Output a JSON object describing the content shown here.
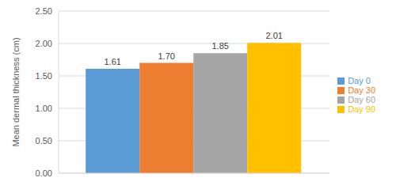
{
  "chart_data": {
    "type": "bar",
    "y_label": "Mean dermal thickness (cm)",
    "categories": [
      null
    ],
    "series": [
      {
        "name": "Day 0",
        "color": "#5B9BD5",
        "values": [
          1.61
        ],
        "value_labels": [
          "1.61"
        ]
      },
      {
        "name": "Day 30",
        "color": "#ED7D31",
        "values": [
          1.7
        ],
        "value_labels": [
          "1.70"
        ]
      },
      {
        "name": "Day 60",
        "color": "#A5A5A5",
        "values": [
          1.85
        ],
        "value_labels": [
          "1.85"
        ]
      },
      {
        "name": "Day 90",
        "color": "#FFC000",
        "values": [
          2.01
        ],
        "value_labels": [
          "2.01"
        ]
      }
    ],
    "ylim": [
      0,
      2.5
    ],
    "yticks": [
      {
        "value": 0,
        "label": "0.00"
      },
      {
        "value": 0.5,
        "label": "0.50"
      },
      {
        "value": 1,
        "label": "1.00"
      },
      {
        "value": 1.5,
        "label": "1.50"
      },
      {
        "value": 2,
        "label": "2.00"
      },
      {
        "value": 2.5,
        "label": "2.50"
      }
    ],
    "grid": true,
    "legend": "right",
    "data_labels": true,
    "tick_labels": "y"
  }
}
